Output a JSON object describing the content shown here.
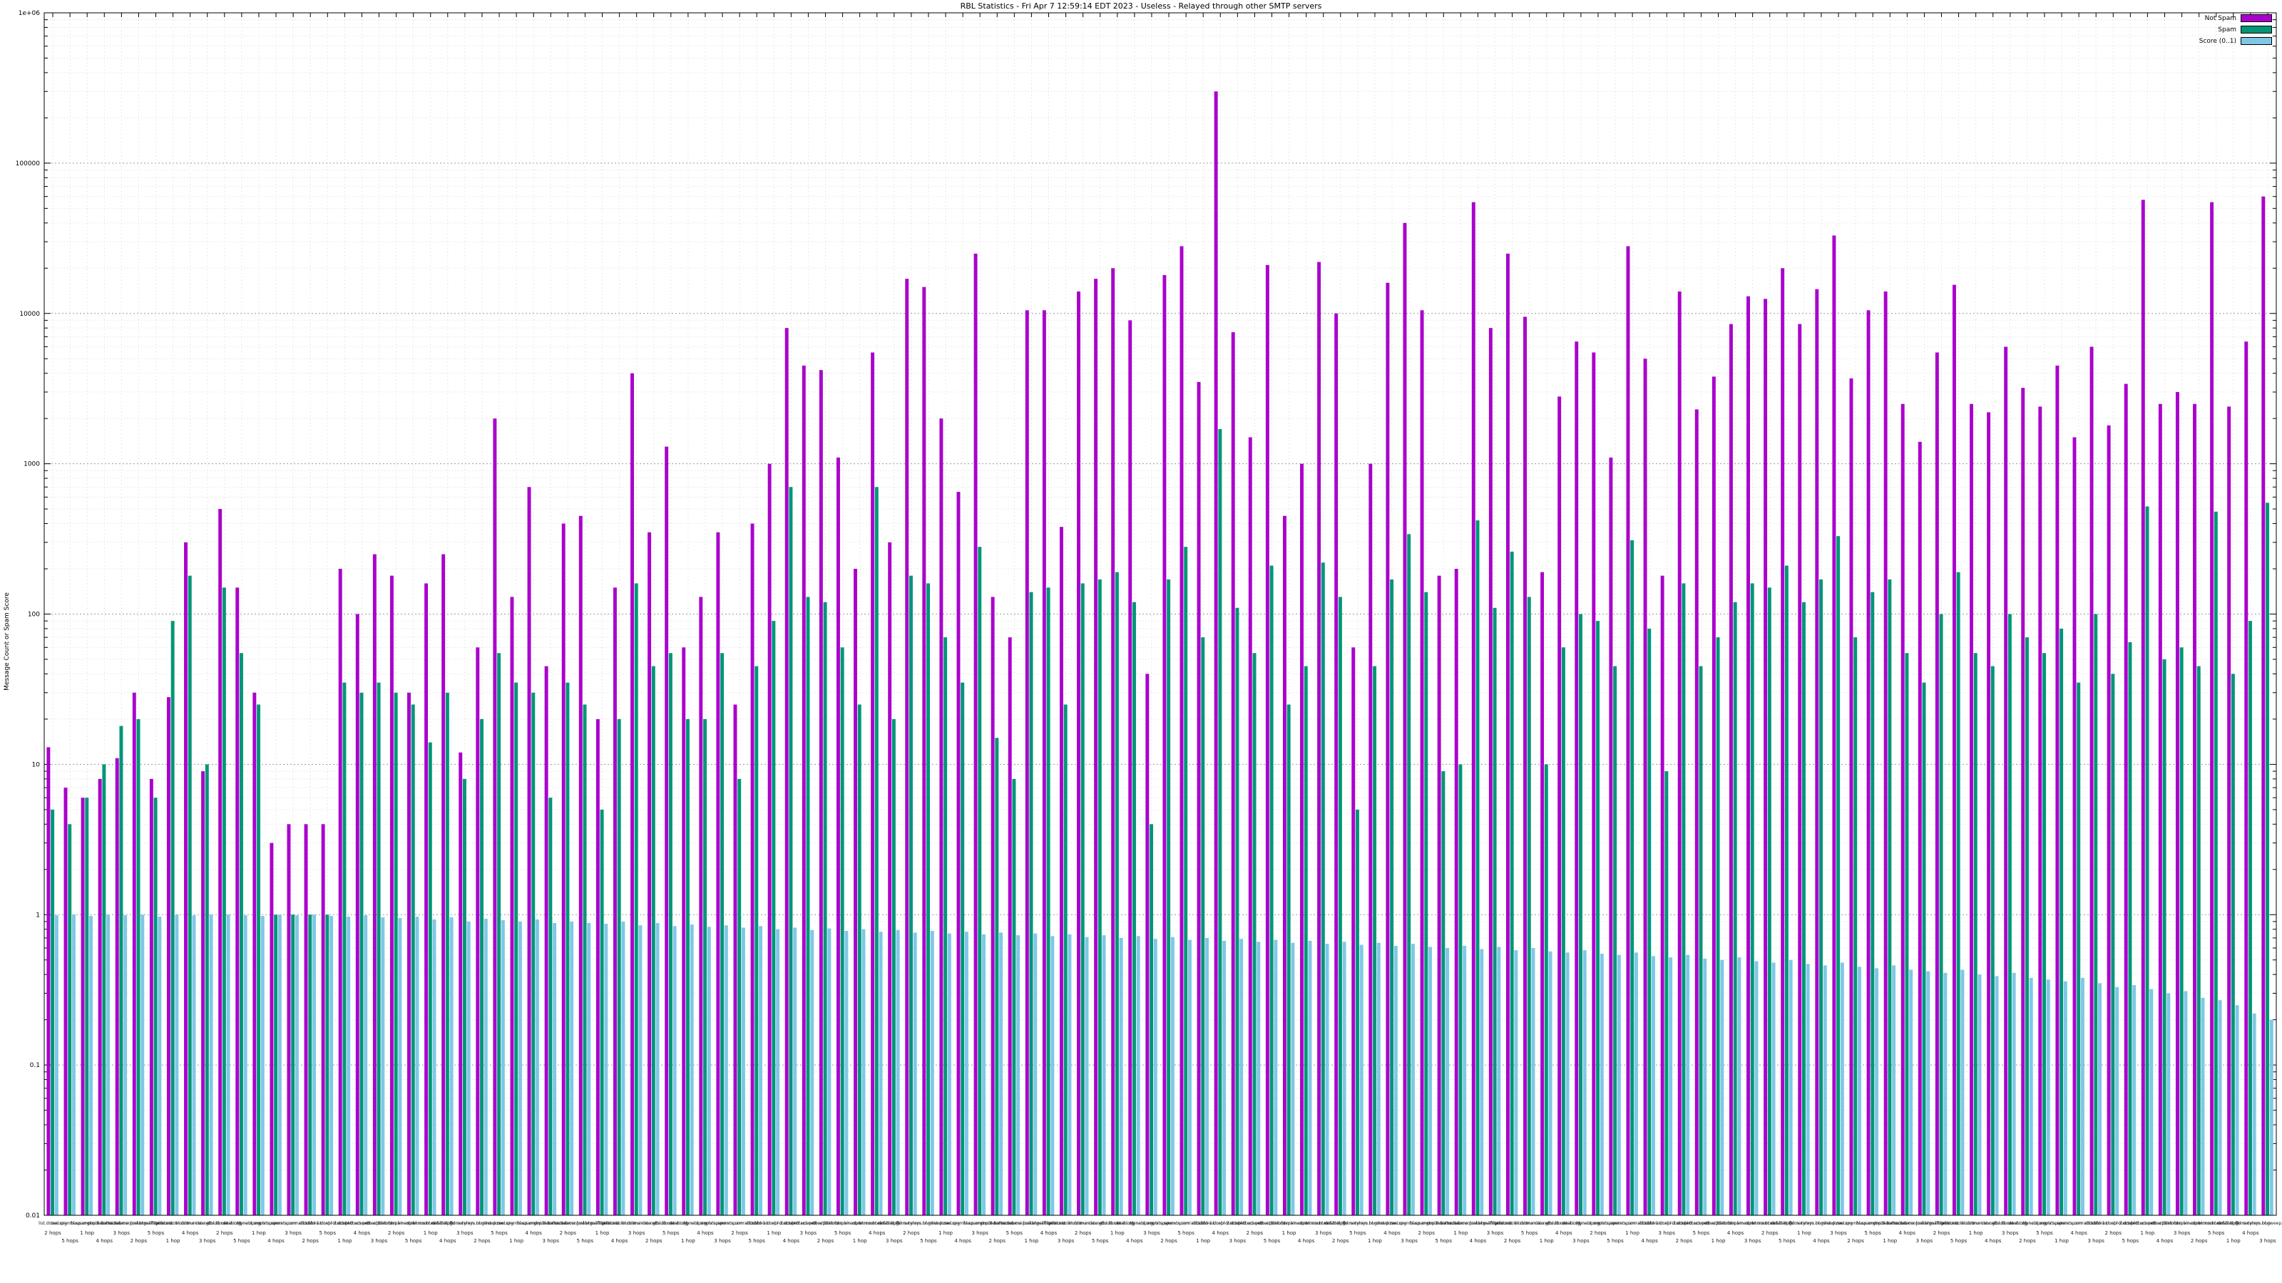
{
  "chart": {
    "title": "RBL Statistics - Fri Apr  7 12:59:14 EDT 2023 - Useless - Relayed through other SMTP servers",
    "ylabel": "Message Count or Spam Score",
    "y_ticks": [
      "1e+06",
      "100000",
      "10000",
      "1000",
      "100",
      "10",
      "1",
      "0.1",
      "0.01"
    ],
    "legend": [
      {
        "label": "Not Spam",
        "color": "#aa00cc"
      },
      {
        "label": "Spam",
        "color": "#009677"
      },
      {
        "label": "Score (0..1)",
        "color": "#7fc7e6"
      }
    ]
  },
  "chart_data": {
    "type": "bar",
    "scale": "log",
    "ylim": [
      0.01,
      1000000
    ],
    "grid": true,
    "legend_position": "top-right",
    "xlabel": "",
    "ylabel": "Message Count or Spam Score",
    "categories": [
      "list.dnswl.org",
      "zen.spamhaus.org",
      "bl.spamcop.net",
      "dnsbl.sorbs.net",
      "b.barracudacentral.org",
      "hostkarma.junkemailfilter.com",
      "bl.mailspike.net",
      "psbl.surriel.com",
      "ix.dnsbl.manitu.net",
      "truncate.gbudb.net",
      "cbl.abuseat.org",
      "dnsbl.dronebl.org",
      "dyna.spamrats.com",
      "noptr.spamrats.com",
      "spam.spamrats.com",
      "all.s5h.net",
      "dnsbl-1.uceprotect.net",
      "dnsbl-2.uceprotect.net",
      "dnsbl-3.uceprotect.net",
      "db.wpbl.info",
      "bl.nordspam.com",
      "combined.rbl.msrbl.net",
      "spamsources.fabel.dk",
      "dnsbl.spfbl.net",
      "bogons.cymru.com",
      "relays.bl.gweep.ca",
      "list.dnswl.org",
      "zen.spamhaus.org",
      "bl.spamcop.net",
      "dnsbl.sorbs.net",
      "b.barracudacentral.org",
      "hostkarma.junkemailfilter.com",
      "bl.mailspike.net",
      "psbl.surriel.com",
      "ix.dnsbl.manitu.net",
      "truncate.gbudb.net",
      "cbl.abuseat.org",
      "dnsbl.dronebl.org",
      "dyna.spamrats.com",
      "noptr.spamrats.com",
      "spam.spamrats.com",
      "all.s5h.net",
      "dnsbl-1.uceprotect.net",
      "dnsbl-2.uceprotect.net",
      "dnsbl-3.uceprotect.net",
      "db.wpbl.info",
      "bl.nordspam.com",
      "combined.rbl.msrbl.net",
      "spamsources.fabel.dk",
      "dnsbl.spfbl.net",
      "bogons.cymru.com",
      "relays.bl.gweep.ca",
      "list.dnswl.org",
      "zen.spamhaus.org",
      "bl.spamcop.net",
      "dnsbl.sorbs.net",
      "b.barracudacentral.org",
      "hostkarma.junkemailfilter.com",
      "bl.mailspike.net",
      "psbl.surriel.com",
      "ix.dnsbl.manitu.net",
      "truncate.gbudb.net",
      "cbl.abuseat.org",
      "dnsbl.dronebl.org",
      "dyna.spamrats.com",
      "noptr.spamrats.com",
      "spam.spamrats.com",
      "all.s5h.net",
      "dnsbl-1.uceprotect.net",
      "dnsbl-2.uceprotect.net",
      "dnsbl-3.uceprotect.net",
      "db.wpbl.info",
      "bl.nordspam.com",
      "combined.rbl.msrbl.net",
      "spamsources.fabel.dk",
      "dnsbl.spfbl.net",
      "bogons.cymru.com",
      "relays.bl.gweep.ca",
      "list.dnswl.org",
      "zen.spamhaus.org",
      "bl.spamcop.net",
      "dnsbl.sorbs.net",
      "b.barracudacentral.org",
      "hostkarma.junkemailfilter.com",
      "bl.mailspike.net",
      "psbl.surriel.com",
      "ix.dnsbl.manitu.net",
      "truncate.gbudb.net",
      "cbl.abuseat.org",
      "dnsbl.dronebl.org",
      "dyna.spamrats.com",
      "noptr.spamrats.com",
      "spam.spamrats.com",
      "all.s5h.net",
      "dnsbl-1.uceprotect.net",
      "dnsbl-2.uceprotect.net",
      "dnsbl-3.uceprotect.net",
      "db.wpbl.info",
      "bl.nordspam.com",
      "combined.rbl.msrbl.net",
      "spamsources.fabel.dk",
      "dnsbl.spfbl.net",
      "bogons.cymru.com",
      "relays.bl.gweep.ca",
      "list.dnswl.org",
      "zen.spamhaus.org",
      "bl.spamcop.net",
      "dnsbl.sorbs.net",
      "b.barracudacentral.org",
      "hostkarma.junkemailfilter.com",
      "bl.mailspike.net",
      "psbl.surriel.com",
      "ix.dnsbl.manitu.net",
      "truncate.gbudb.net",
      "cbl.abuseat.org",
      "dnsbl.dronebl.org",
      "dyna.spamrats.com",
      "noptr.spamrats.com",
      "spam.spamrats.com",
      "all.s5h.net",
      "dnsbl-1.uceprotect.net",
      "dnsbl-2.uceprotect.net",
      "dnsbl-3.uceprotect.net",
      "db.wpbl.info",
      "bl.nordspam.com",
      "combined.rbl.msrbl.net",
      "spamsources.fabel.dk",
      "dnsbl.spfbl.net",
      "bogons.cymru.com",
      "relays.bl.gweep.ca"
    ],
    "hops": [
      2,
      5,
      1,
      4,
      3,
      2,
      5,
      1,
      4,
      3,
      2,
      5,
      1,
      4,
      3,
      2,
      5,
      1,
      4,
      3,
      2,
      5,
      1,
      4,
      3,
      2,
      5,
      1,
      4,
      3,
      2,
      5,
      1,
      4,
      3,
      2,
      5,
      1,
      4,
      3,
      2,
      5,
      1,
      4,
      3,
      2,
      5,
      1,
      4,
      3,
      2,
      5,
      1,
      4,
      3,
      2,
      5,
      1,
      4,
      3,
      2,
      5,
      1,
      4,
      3,
      2,
      5,
      1,
      4,
      3,
      2,
      5,
      1,
      4,
      3,
      2,
      5,
      1,
      4,
      3,
      2,
      5,
      1,
      4,
      3,
      2,
      5,
      1,
      4,
      3,
      2,
      5,
      1,
      4,
      3,
      2,
      5,
      1,
      4,
      3,
      2,
      5,
      1,
      4,
      3,
      2,
      5,
      1,
      4,
      3,
      2,
      5,
      1,
      4,
      3,
      2,
      5,
      1,
      4,
      3,
      2,
      5,
      1,
      4,
      3,
      2,
      5,
      1,
      4,
      3
    ],
    "series": [
      {
        "name": "Not Spam",
        "color": "#aa00cc",
        "values": [
          13,
          7,
          6,
          8,
          11,
          30,
          8,
          28,
          300,
          9,
          500,
          150,
          30,
          3,
          4,
          4,
          4,
          200,
          100,
          250,
          180,
          30,
          160,
          250,
          12,
          60,
          2000,
          130,
          700,
          45,
          400,
          450,
          20,
          150,
          4000,
          350,
          1300,
          60,
          130,
          350,
          25,
          400,
          1000,
          8000,
          4500,
          4200,
          1100,
          200,
          5500,
          300,
          17000,
          15000,
          2000,
          650,
          25000,
          130,
          70,
          10500,
          10500,
          380,
          14000,
          17000,
          20000,
          9000,
          40,
          18000,
          28000,
          3500,
          300000,
          7500,
          1500,
          21000,
          450,
          1000,
          22000,
          10000,
          60,
          1000,
          16000,
          40000,
          10500,
          180,
          200,
          55000,
          8000,
          25000,
          9500,
          190,
          2800,
          6500,
          5500,
          1100,
          28000,
          5000,
          180,
          14000,
          2300,
          3800,
          8500,
          13000,
          12500,
          20000,
          8500,
          14500,
          33000,
          3700,
          10500,
          14000,
          2500,
          1400,
          5500,
          15500,
          2500,
          2200,
          6000,
          3200,
          2400,
          4500,
          1500,
          6000,
          1800,
          3400,
          57000,
          2500,
          3000,
          2500,
          55000,
          2400,
          6500,
          60000
        ]
      },
      {
        "name": "Spam",
        "color": "#009677",
        "values": [
          5,
          4,
          6,
          10,
          18,
          20,
          6,
          90,
          180,
          10,
          150,
          55,
          25,
          1,
          1,
          1,
          1,
          35,
          30,
          35,
          30,
          25,
          14,
          30,
          8,
          20,
          55,
          35,
          30,
          6,
          35,
          25,
          5,
          20,
          160,
          45,
          55,
          20,
          20,
          55,
          8,
          45,
          90,
          700,
          130,
          120,
          60,
          25,
          700,
          20,
          180,
          160,
          70,
          35,
          280,
          15,
          8,
          140,
          150,
          25,
          160,
          170,
          190,
          120,
          4,
          170,
          280,
          70,
          1700,
          110,
          55,
          210,
          25,
          45,
          220,
          130,
          5,
          45,
          170,
          340,
          140,
          9,
          10,
          420,
          110,
          260,
          130,
          10,
          60,
          100,
          90,
          45,
          310,
          80,
          9,
          160,
          45,
          70,
          120,
          160,
          150,
          210,
          120,
          170,
          330,
          70,
          140,
          170,
          55,
          35,
          100,
          190,
          55,
          45,
          100,
          70,
          55,
          80,
          35,
          100,
          40,
          65,
          520,
          50,
          60,
          45,
          480,
          40,
          90,
          550
        ]
      },
      {
        "name": "Score (0..1)",
        "color": "#7fc7e6",
        "values": [
          0.99,
          1.0,
          0.98,
          1.0,
          0.99,
          1.0,
          0.97,
          1.0,
          0.99,
          1.0,
          1.0,
          0.99,
          0.98,
          1.0,
          0.99,
          1.0,
          0.98,
          0.97,
          0.99,
          0.96,
          0.95,
          0.97,
          0.93,
          0.96,
          0.9,
          0.94,
          0.92,
          0.9,
          0.93,
          0.88,
          0.9,
          0.88,
          0.87,
          0.9,
          0.85,
          0.88,
          0.84,
          0.86,
          0.83,
          0.85,
          0.82,
          0.84,
          0.8,
          0.82,
          0.79,
          0.81,
          0.78,
          0.8,
          0.77,
          0.79,
          0.76,
          0.78,
          0.75,
          0.77,
          0.74,
          0.76,
          0.73,
          0.75,
          0.72,
          0.74,
          0.71,
          0.73,
          0.7,
          0.72,
          0.69,
          0.71,
          0.68,
          0.7,
          0.67,
          0.69,
          0.66,
          0.68,
          0.65,
          0.67,
          0.64,
          0.66,
          0.63,
          0.65,
          0.62,
          0.64,
          0.61,
          0.6,
          0.62,
          0.59,
          0.61,
          0.58,
          0.6,
          0.57,
          0.56,
          0.58,
          0.55,
          0.54,
          0.56,
          0.53,
          0.52,
          0.54,
          0.51,
          0.5,
          0.52,
          0.49,
          0.48,
          0.5,
          0.47,
          0.46,
          0.48,
          0.45,
          0.44,
          0.46,
          0.43,
          0.42,
          0.41,
          0.43,
          0.4,
          0.39,
          0.41,
          0.38,
          0.37,
          0.36,
          0.38,
          0.35,
          0.33,
          0.34,
          0.32,
          0.3,
          0.31,
          0.28,
          0.27,
          0.25,
          0.22,
          0.2
        ]
      }
    ]
  }
}
